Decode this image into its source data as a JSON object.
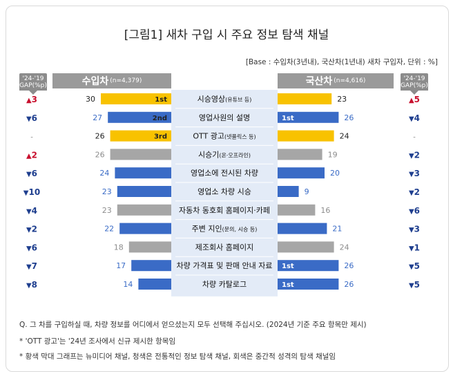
{
  "title": "[그림1] 새차 구입 시 주요 정보 탐색 채널",
  "base_note": "[Base : 수입차(3년내), 국산차(1년내) 새차 구입자, 단위 : %]",
  "headers": {
    "import_label": "수입차",
    "import_n": "(n=4,379)",
    "domestic_label": "국산차",
    "domestic_n": "(n=4,616)",
    "gap_line1": "'24-'19",
    "gap_line2": "GAP(%p)"
  },
  "colors": {
    "yellow": "#f8c200",
    "blue": "#3a6bc6",
    "gray": "#a6a6a6",
    "up_red": "#c8102e",
    "down_blue": "#1f3f8f",
    "center_bg": "#e3ebf7",
    "header_gray": "#9a9a9a"
  },
  "chart_data": {
    "type": "bar",
    "categories": [
      {
        "main": "시승영상",
        "sub": "(유튜브 등)"
      },
      {
        "main": "영업사원의 설명",
        "sub": ""
      },
      {
        "main": "OTT 광고",
        "sub": "(넷플릭스 등)"
      },
      {
        "main": "시승기",
        "sub": "(온·오프라인)"
      },
      {
        "main": "영업소에 전시된 차량",
        "sub": ""
      },
      {
        "main": "영업소 차량 시승",
        "sub": ""
      },
      {
        "main": "자동차 동호회 홈페이지·카페",
        "sub": ""
      },
      {
        "main": "주변 지인",
        "sub": "(문의, 시승 등)"
      },
      {
        "main": "제조회사 홈페이지",
        "sub": ""
      },
      {
        "main": "차량 가격표 및 판매 안내 자료",
        "sub": ""
      },
      {
        "main": "차량 카탈로그",
        "sub": ""
      }
    ],
    "series": [
      {
        "name": "수입차",
        "values": [
          30,
          27,
          26,
          26,
          24,
          23,
          23,
          22,
          18,
          17,
          14
        ]
      },
      {
        "name": "국산차",
        "values": [
          23,
          26,
          24,
          19,
          20,
          9,
          16,
          21,
          24,
          26,
          26
        ]
      }
    ],
    "bar_types": [
      "yellow",
      "blue",
      "yellow",
      "gray",
      "blue",
      "blue",
      "gray",
      "blue",
      "gray",
      "blue",
      "blue"
    ],
    "import_rank": [
      "1st",
      "2nd",
      "3rd",
      "",
      "",
      "",
      "",
      "",
      "",
      "",
      ""
    ],
    "domestic_rank": [
      "",
      "1st",
      "",
      "",
      "",
      "",
      "",
      "",
      "",
      "1st",
      "1st"
    ],
    "import_gap": [
      {
        "dir": "up",
        "value": "3"
      },
      {
        "dir": "down",
        "value": "6"
      },
      {
        "dir": "none",
        "value": "-"
      },
      {
        "dir": "up",
        "value": "2"
      },
      {
        "dir": "down",
        "value": "6"
      },
      {
        "dir": "down",
        "value": "10"
      },
      {
        "dir": "down",
        "value": "4"
      },
      {
        "dir": "down",
        "value": "2"
      },
      {
        "dir": "down",
        "value": "6"
      },
      {
        "dir": "down",
        "value": "7"
      },
      {
        "dir": "down",
        "value": "8"
      }
    ],
    "domestic_gap": [
      {
        "dir": "up",
        "value": "5"
      },
      {
        "dir": "down",
        "value": "4"
      },
      {
        "dir": "none",
        "value": "-"
      },
      {
        "dir": "down",
        "value": "2"
      },
      {
        "dir": "down",
        "value": "3"
      },
      {
        "dir": "down",
        "value": "2"
      },
      {
        "dir": "down",
        "value": "6"
      },
      {
        "dir": "down",
        "value": "3"
      },
      {
        "dir": "down",
        "value": "1"
      },
      {
        "dir": "down",
        "value": "5"
      },
      {
        "dir": "down",
        "value": "5"
      }
    ],
    "xlim": [
      0,
      30
    ]
  },
  "footnotes": [
    "Q. 그 차를 구입하실 때, 차량 정보를 어디에서 얻으셨는지 모두 선택해 주십시오. (2024년 기준 주요 항목만 제시)",
    "* 'OTT 광고'는 '24년 조사에서 신규 제시한 항목임",
    "* 황색 막대 그래프는 뉴미디어 채널, 청색은 전통적인 정보 탐색 채널, 회색은 중간적 성격의 탐색 채널임"
  ]
}
